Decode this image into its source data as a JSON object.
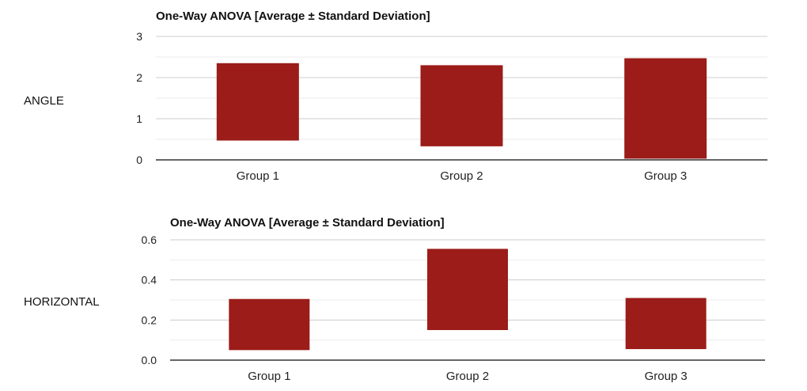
{
  "colors": {
    "bar": "#9b1c18",
    "grid": "#cccccc",
    "minor_grid": "#ebebeb",
    "axis": "#333333",
    "text": "#222222"
  },
  "chart_data": [
    {
      "type": "bar",
      "row_label": "ANGLE",
      "title": "One-Way ANOVA [Average ± Standard Deviation]",
      "categories": [
        "Group 1",
        "Group 2",
        "Group 3"
      ],
      "ranges": [
        [
          0.47,
          2.35
        ],
        [
          0.33,
          2.3
        ],
        [
          0.03,
          2.47
        ]
      ],
      "ylim": [
        0,
        3
      ],
      "yticks": [
        0,
        1,
        2,
        3
      ],
      "ytick_labels": [
        "0",
        "1",
        "2",
        "3"
      ],
      "grid": true
    },
    {
      "type": "bar",
      "row_label": "HORIZONTAL",
      "title": "One-Way ANOVA [Average ± Standard Deviation]",
      "categories": [
        "Group 1",
        "Group 2",
        "Group 3"
      ],
      "ranges": [
        [
          0.05,
          0.305
        ],
        [
          0.15,
          0.555
        ],
        [
          0.055,
          0.31
        ]
      ],
      "ylim": [
        0,
        0.6
      ],
      "yticks": [
        0,
        0.2,
        0.4,
        0.6
      ],
      "ytick_labels": [
        "0.0",
        "0.2",
        "0.4",
        "0.6"
      ],
      "grid": true
    }
  ]
}
